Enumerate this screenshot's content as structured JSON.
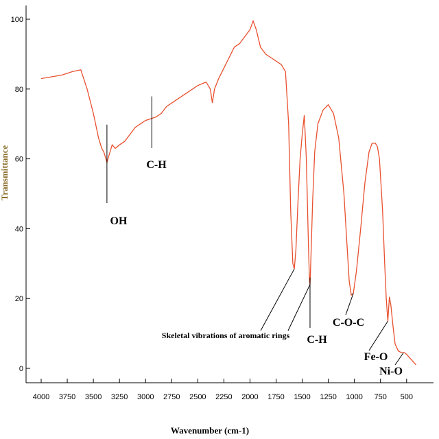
{
  "chart_data": {
    "type": "line",
    "xlabel": "Wavenumber (cm-1)",
    "ylabel": "Transmittance",
    "xlim": [
      4000,
      400
    ],
    "ylim": [
      0,
      100
    ],
    "x_ticks": [
      4000,
      3750,
      3500,
      3250,
      3000,
      2750,
      2500,
      2250,
      2000,
      1750,
      1500,
      1250,
      1000,
      750,
      500
    ],
    "y_ticks": [
      0,
      20,
      40,
      60,
      80,
      100
    ],
    "grid": false,
    "line_color": "#e8502e",
    "series": [
      {
        "points": [
          [
            4000,
            83
          ],
          [
            3900,
            83.5
          ],
          [
            3800,
            84
          ],
          [
            3700,
            85
          ],
          [
            3620,
            85.5
          ],
          [
            3560,
            80
          ],
          [
            3500,
            73
          ],
          [
            3450,
            66
          ],
          [
            3420,
            63
          ],
          [
            3400,
            62
          ],
          [
            3380,
            60
          ],
          [
            3370,
            59
          ],
          [
            3350,
            61
          ],
          [
            3320,
            64
          ],
          [
            3290,
            63
          ],
          [
            3250,
            64
          ],
          [
            3200,
            65
          ],
          [
            3150,
            67
          ],
          [
            3100,
            69
          ],
          [
            3050,
            70
          ],
          [
            3000,
            71
          ],
          [
            2950,
            71.5
          ],
          [
            2900,
            72
          ],
          [
            2850,
            73
          ],
          [
            2800,
            75
          ],
          [
            2700,
            77
          ],
          [
            2600,
            79
          ],
          [
            2500,
            81
          ],
          [
            2420,
            82
          ],
          [
            2380,
            80
          ],
          [
            2360,
            76
          ],
          [
            2340,
            80
          ],
          [
            2300,
            83
          ],
          [
            2250,
            86
          ],
          [
            2200,
            89
          ],
          [
            2150,
            92
          ],
          [
            2100,
            93
          ],
          [
            2050,
            95
          ],
          [
            2000,
            97
          ],
          [
            1970,
            99.5
          ],
          [
            1940,
            97
          ],
          [
            1900,
            92
          ],
          [
            1850,
            90
          ],
          [
            1800,
            89
          ],
          [
            1750,
            88
          ],
          [
            1700,
            87
          ],
          [
            1660,
            85
          ],
          [
            1630,
            70
          ],
          [
            1610,
            45
          ],
          [
            1590,
            30
          ],
          [
            1575,
            28.5
          ],
          [
            1560,
            34
          ],
          [
            1540,
            48
          ],
          [
            1520,
            60
          ],
          [
            1500,
            67
          ],
          [
            1480,
            72.5
          ],
          [
            1460,
            60
          ],
          [
            1440,
            35
          ],
          [
            1430,
            25
          ],
          [
            1425,
            24
          ],
          [
            1415,
            33
          ],
          [
            1400,
            48
          ],
          [
            1380,
            62
          ],
          [
            1350,
            70
          ],
          [
            1300,
            74
          ],
          [
            1250,
            75.5
          ],
          [
            1200,
            73
          ],
          [
            1150,
            66
          ],
          [
            1100,
            50
          ],
          [
            1070,
            35
          ],
          [
            1050,
            25
          ],
          [
            1030,
            21
          ],
          [
            1010,
            21.5
          ],
          [
            980,
            28
          ],
          [
            940,
            40
          ],
          [
            900,
            53
          ],
          [
            860,
            62
          ],
          [
            830,
            64.5
          ],
          [
            800,
            64.5
          ],
          [
            780,
            63.5
          ],
          [
            760,
            60
          ],
          [
            730,
            45
          ],
          [
            710,
            30
          ],
          [
            695,
            20
          ],
          [
            680,
            13.5
          ],
          [
            665,
            20.5
          ],
          [
            650,
            18
          ],
          [
            630,
            12
          ],
          [
            610,
            7
          ],
          [
            580,
            5
          ],
          [
            550,
            4.5
          ],
          [
            520,
            4.5
          ],
          [
            500,
            4
          ],
          [
            470,
            3
          ],
          [
            440,
            2
          ],
          [
            410,
            1
          ]
        ]
      }
    ],
    "annotations": [
      {
        "text": "OH",
        "x": 3370,
        "y": 59
      },
      {
        "text": "C-H",
        "x": 2940,
        "y": 72
      },
      {
        "text": "Skeletal vibrations of aromatic rings",
        "x": 1575,
        "y": 28.5
      },
      {
        "text": "C-H",
        "x": 1425,
        "y": 24
      },
      {
        "text": "C-O-C",
        "x": 1010,
        "y": 21.5
      },
      {
        "text": "Fe-O",
        "x": 680,
        "y": 13.5
      },
      {
        "text": "Ni-O",
        "x": 530,
        "y": 4.5
      }
    ]
  }
}
